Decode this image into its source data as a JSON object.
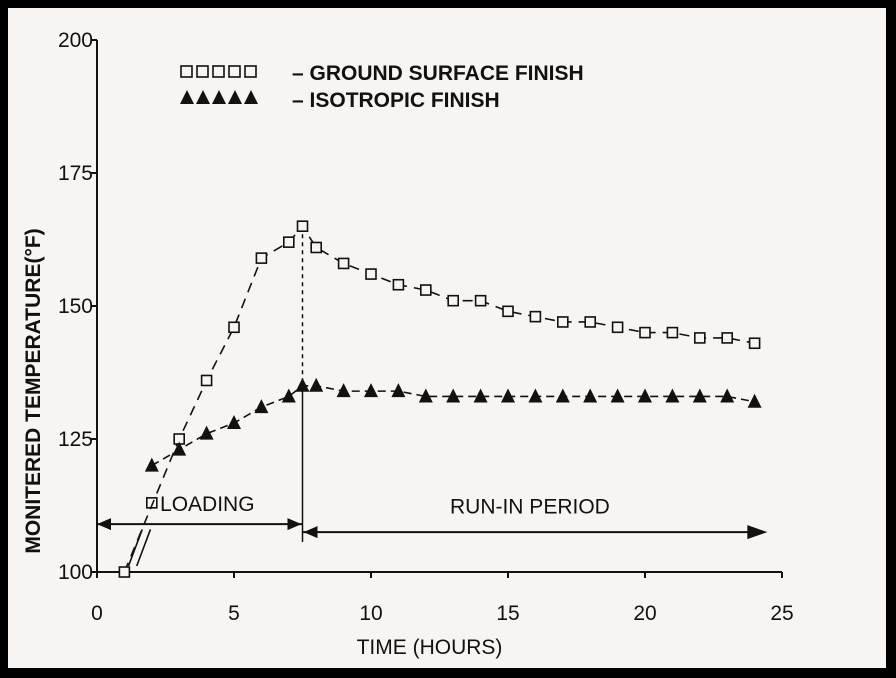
{
  "chart_data": {
    "type": "line",
    "title": "",
    "xlabel": "TIME (HOURS)",
    "ylabel": "MONITERED TEMPERATURE(°F)",
    "xlim": [
      0,
      25
    ],
    "ylim": [
      100,
      200
    ],
    "x_ticks": [
      "0",
      "5",
      "10",
      "15",
      "20",
      "25"
    ],
    "y_ticks": [
      "100",
      "125",
      "150",
      "175",
      "200"
    ],
    "grid": false,
    "legend_position": "top-left",
    "series": [
      {
        "name": "– GROUND SURFACE FINISH",
        "marker": "open-square",
        "color": "#111111",
        "points": [
          [
            1,
            100
          ],
          [
            3,
            125
          ],
          [
            4,
            136
          ],
          [
            5,
            146
          ],
          [
            6,
            159
          ],
          [
            7,
            162
          ],
          [
            7.5,
            165
          ],
          [
            8,
            161
          ],
          [
            9,
            158
          ],
          [
            10,
            156
          ],
          [
            11,
            154
          ],
          [
            12,
            153
          ],
          [
            13,
            151
          ],
          [
            14,
            151
          ],
          [
            15,
            149
          ],
          [
            16,
            148
          ],
          [
            17,
            147
          ],
          [
            18,
            147
          ],
          [
            19,
            146
          ],
          [
            20,
            145
          ],
          [
            21,
            145
          ],
          [
            22,
            144
          ],
          [
            23,
            144
          ],
          [
            24,
            143
          ]
        ]
      },
      {
        "name": "– ISOTROPIC FINISH",
        "marker": "filled-triangle",
        "color": "#111111",
        "points": [
          [
            2,
            120
          ],
          [
            3,
            123
          ],
          [
            4,
            126
          ],
          [
            5,
            128
          ],
          [
            6,
            131
          ],
          [
            7,
            133
          ],
          [
            7.5,
            135
          ],
          [
            8,
            135
          ],
          [
            9,
            134
          ],
          [
            10,
            134
          ],
          [
            11,
            134
          ],
          [
            12,
            133
          ],
          [
            13,
            133
          ],
          [
            14,
            133
          ],
          [
            15,
            133
          ],
          [
            16,
            133
          ],
          [
            17,
            133
          ],
          [
            18,
            133
          ],
          [
            19,
            133
          ],
          [
            20,
            133
          ],
          [
            21,
            133
          ],
          [
            22,
            133
          ],
          [
            23,
            133
          ],
          [
            24,
            132
          ]
        ]
      }
    ],
    "annotations": [
      {
        "text": "LOADING",
        "x_range": [
          0,
          7.5
        ]
      },
      {
        "text": "RUN-IN PERIOD",
        "x_range": [
          7.5,
          24
        ]
      }
    ],
    "divider_x": 7.5,
    "arrow_y": 109,
    "loading_square_pos": [
      2,
      113
    ]
  }
}
